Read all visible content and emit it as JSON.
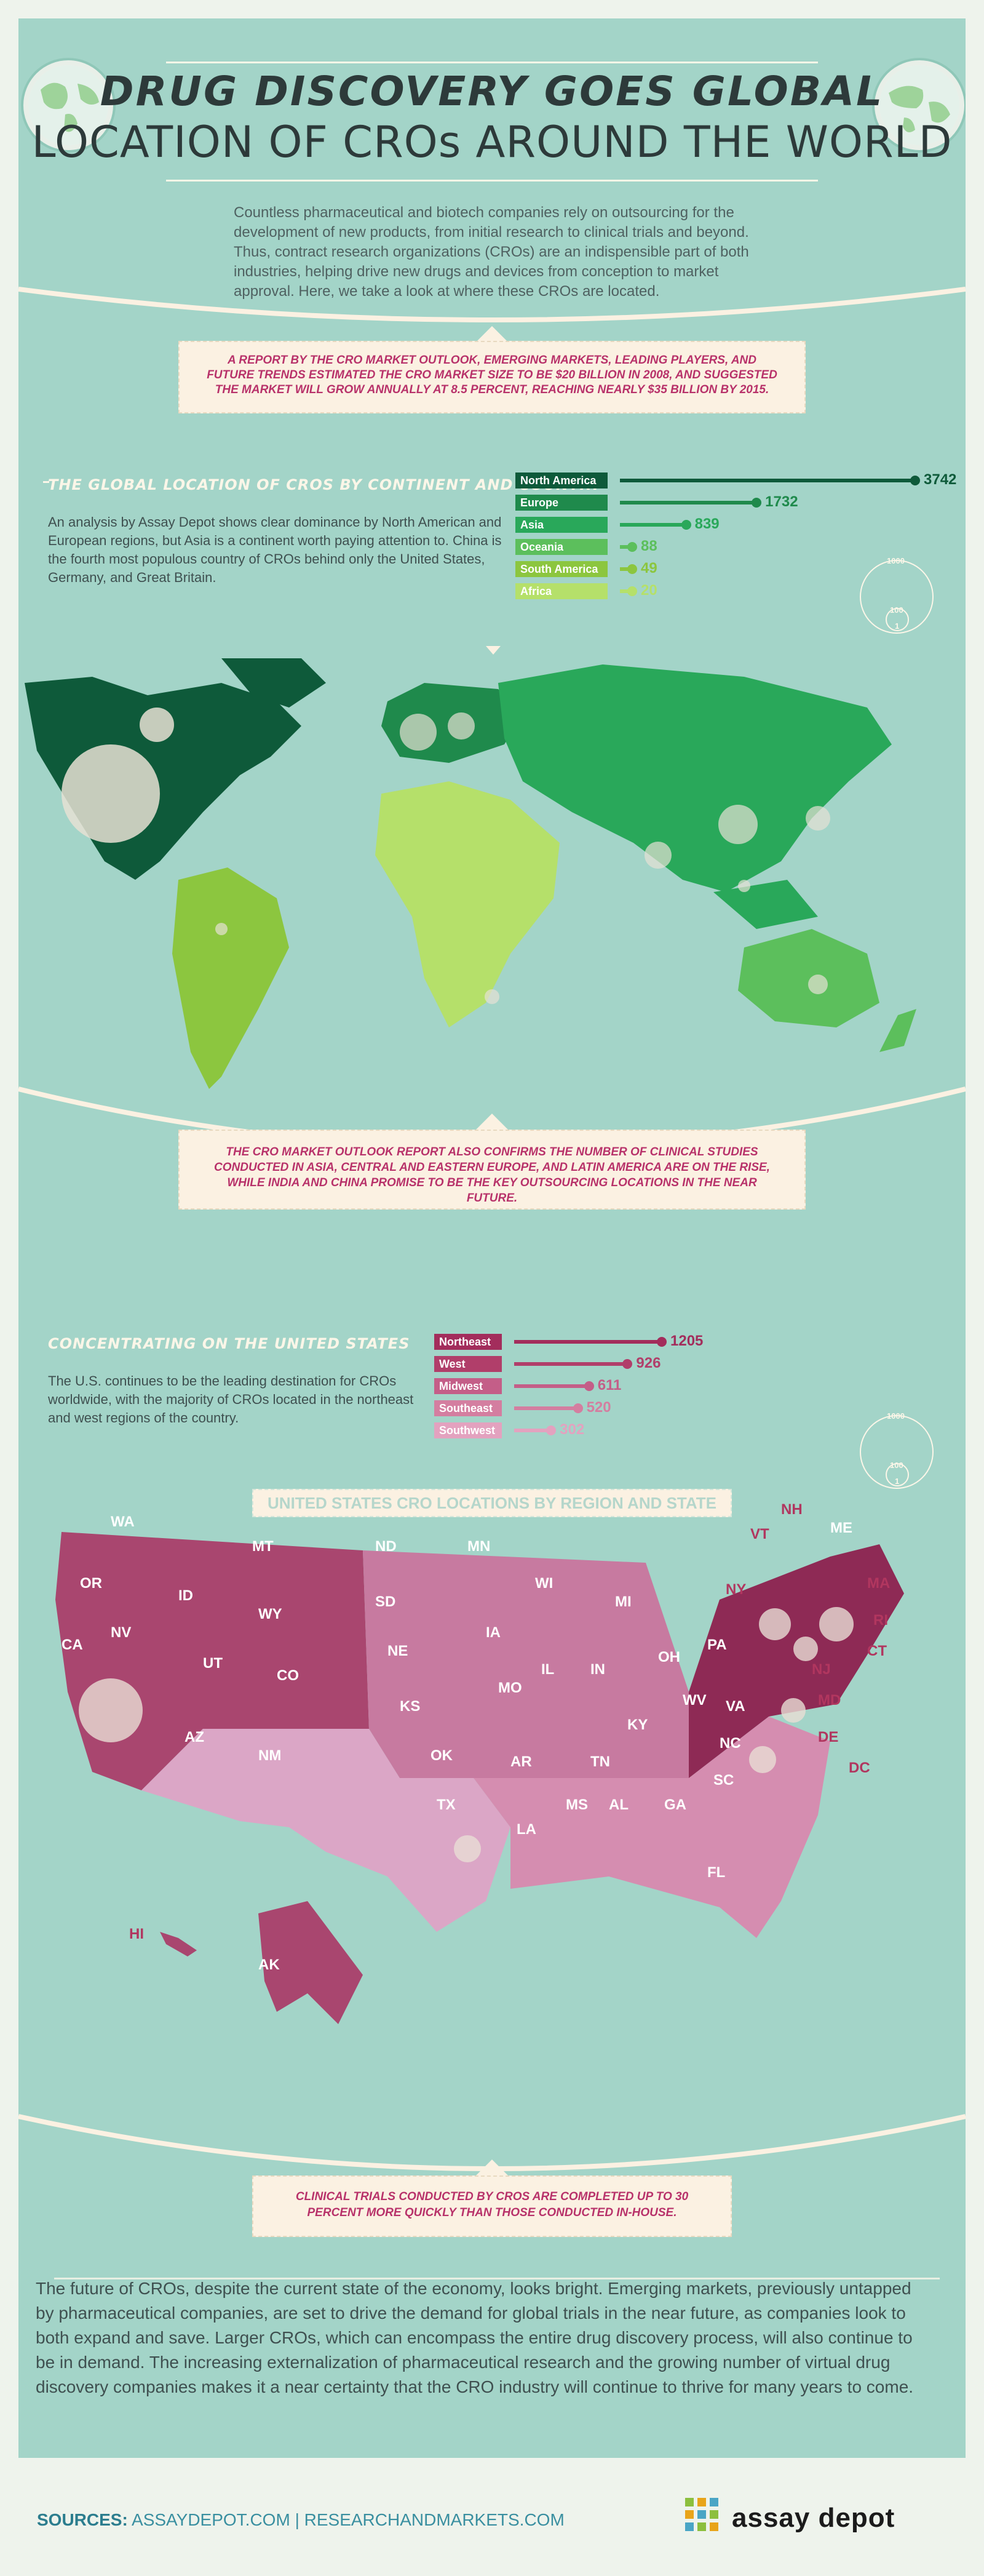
{
  "header": {
    "title_line1": "DRUG DISCOVERY GOES GLOBAL",
    "title_line2": "LOCATION OF CROs AROUND THE WORLD",
    "intro": "Countless pharmaceutical and biotech companies rely on outsourcing for the development of new products, from initial research to clinical trials and beyond. Thus, contract research organizations (CROs) are an indispensible part of both industries, helping drive new drugs and devices from conception to market approval. Here, we take a look at where these CROs are located."
  },
  "banner1": "A REPORT BY THE CRO MARKET OUTLOOK, EMERGING MARKETS, LEADING PLAYERS, AND FUTURE TRENDS ESTIMATED THE CRO MARKET SIZE TO BE $20 BILLION IN 2008, AND SUGGESTED THE MARKET WILL GROW ANNUALLY AT 8.5 PERCENT, REACHING NEARLY $35 BILLION BY 2015.",
  "global": {
    "heading": "THE GLOBAL LOCATION OF CROs BY CONTINENT AND COUNTRY",
    "text": "An analysis by Assay Depot shows clear dominance by North American and European regions, but Asia is a continent worth paying attention to. China is the fourth most populous country of CROs behind only the United States, Germany, and Great Britain."
  },
  "legend": {
    "l1000": "1000",
    "l100": "100",
    "l1": "1"
  },
  "banner2": "THE CRO MARKET OUTLOOK REPORT ALSO CONFIRMS THE NUMBER OF CLINICAL STUDIES CONDUCTED IN ASIA, CENTRAL AND EASTERN EUROPE, AND LATIN AMERICA ARE ON THE RISE, WHILE INDIA AND CHINA PROMISE TO BE THE KEY OUTSOURCING LOCATIONS IN THE NEAR FUTURE.",
  "us": {
    "heading": "CONCENTRATING ON THE UNITED STATES",
    "text": "The U.S. continues to be the leading destination for CROs worldwide, with the majority of CROs located in the northeast and west regions of the country.",
    "map_title": "UNITED STATES CRO LOCATIONS BY REGION AND STATE",
    "states": [
      "WA",
      "OR",
      "CA",
      "NV",
      "ID",
      "MT",
      "WY",
      "UT",
      "CO",
      "AZ",
      "NM",
      "ND",
      "SD",
      "NE",
      "KS",
      "OK",
      "TX",
      "MN",
      "IA",
      "MO",
      "AR",
      "LA",
      "WI",
      "IL",
      "MI",
      "IN",
      "OH",
      "KY",
      "TN",
      "MS",
      "AL",
      "GA",
      "FL",
      "SC",
      "NC",
      "VA",
      "WV",
      "PA",
      "NY",
      "VT",
      "NH",
      "ME",
      "MA",
      "RI",
      "CT",
      "NJ",
      "MD",
      "DE",
      "DC",
      "HI",
      "AK"
    ]
  },
  "banner3": "CLINICAL TRIALS CONDUCTED BY CROs ARE COMPLETED UP TO 30 PERCENT MORE QUICKLY THAN THOSE CONDUCTED IN-HOUSE.",
  "conclusion": "The future of CROs, despite the current state of the economy, looks bright. Emerging markets, previously untapped by pharmaceutical companies, are set to drive the demand for global trials in the near future, as companies look to both expand and save. Larger CROs, which can encompass the entire drug discovery process, will also continue to be in demand. The increasing externalization of pharmaceutical research and the growing number of virtual drug discovery companies makes it a near certainty that the CRO industry will continue to thrive for many years to come.",
  "sources": {
    "label": "SOURCES:",
    "text": "ASSAYDEPOT.COM | RESEARCHANDMARKETS.COM"
  },
  "logo": "assay depot",
  "colors": {
    "teal_bg": "#a3d4c8",
    "cream": "#fbf1e2",
    "magenta": "#b8326a",
    "dark_green": "#0e5a3a"
  },
  "chart_data": [
    {
      "type": "bar",
      "categories": [
        "North America",
        "Europe",
        "Asia",
        "Oceania",
        "South America",
        "Africa"
      ],
      "values": [
        3742,
        1732,
        839,
        88,
        49,
        20
      ],
      "colors": [
        "#0e5a3a",
        "#1f8a4c",
        "#29a85a",
        "#5cbf5c",
        "#8cc63f",
        "#b5e06a"
      ],
      "title": "THE GLOBAL LOCATION OF CROs BY CONTINENT AND COUNTRY"
    },
    {
      "type": "bar",
      "categories": [
        "Northeast",
        "West",
        "Midwest",
        "Southeast",
        "Southwest"
      ],
      "values": [
        1205,
        926,
        611,
        520,
        302
      ],
      "colors": [
        "#a32d5c",
        "#b13e6a",
        "#c45e88",
        "#d47ea0",
        "#e3a2bf"
      ],
      "title": "CONCENTRATING ON THE UNITED STATES"
    }
  ]
}
